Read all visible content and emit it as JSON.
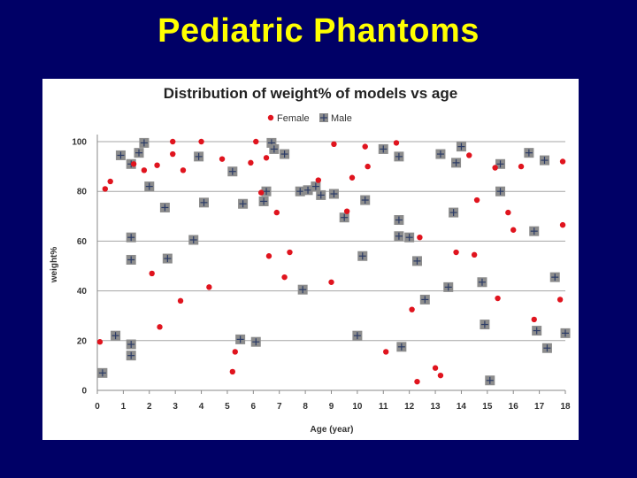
{
  "slide": {
    "title": "Pediatric Phantoms"
  },
  "chart_data": {
    "type": "scatter",
    "title": "Distribution of weight% of models vs age",
    "xlabel": "Age (year)",
    "ylabel": "weight%",
    "xlim": [
      0,
      18
    ],
    "ylim": [
      0,
      100
    ],
    "xticks": [
      0,
      1,
      2,
      3,
      4,
      5,
      6,
      7,
      8,
      9,
      10,
      11,
      12,
      13,
      14,
      15,
      16,
      17,
      18
    ],
    "yticks": [
      0,
      20,
      40,
      60,
      80,
      100
    ],
    "grid": true,
    "legend_position": "top-center",
    "series": [
      {
        "name": "Female",
        "color": "#e0141e",
        "marker": "circle",
        "points": [
          [
            0.1,
            19.5
          ],
          [
            0.3,
            81
          ],
          [
            0.5,
            84
          ],
          [
            1.4,
            91
          ],
          [
            1.8,
            88.5
          ],
          [
            2.1,
            47
          ],
          [
            2.3,
            90.5
          ],
          [
            2.4,
            25.5
          ],
          [
            2.9,
            100
          ],
          [
            2.9,
            95
          ],
          [
            3.2,
            36
          ],
          [
            3.3,
            88.5
          ],
          [
            4.0,
            100
          ],
          [
            4.3,
            41.5
          ],
          [
            4.8,
            93
          ],
          [
            5.2,
            7.5
          ],
          [
            5.3,
            15.5
          ],
          [
            5.9,
            91.5
          ],
          [
            6.1,
            100
          ],
          [
            6.3,
            79.5
          ],
          [
            6.5,
            93.5
          ],
          [
            6.6,
            54
          ],
          [
            6.9,
            71.5
          ],
          [
            7.2,
            45.5
          ],
          [
            7.4,
            55.5
          ],
          [
            8.5,
            84.5
          ],
          [
            9.0,
            43.5
          ],
          [
            9.1,
            99
          ],
          [
            9.6,
            72
          ],
          [
            9.8,
            85.5
          ],
          [
            10.3,
            98
          ],
          [
            10.4,
            90
          ],
          [
            11.1,
            15.5
          ],
          [
            11.5,
            99.5
          ],
          [
            12.1,
            32.5
          ],
          [
            12.3,
            3.5
          ],
          [
            12.4,
            61.5
          ],
          [
            13.0,
            9
          ],
          [
            13.2,
            6
          ],
          [
            13.8,
            55.5
          ],
          [
            14.3,
            94.5
          ],
          [
            14.5,
            54.5
          ],
          [
            14.6,
            76.5
          ],
          [
            15.4,
            37
          ],
          [
            15.3,
            89.5
          ],
          [
            15.8,
            71.5
          ],
          [
            16.0,
            64.5
          ],
          [
            16.3,
            90
          ],
          [
            16.8,
            28.5
          ],
          [
            17.8,
            36.5
          ],
          [
            17.9,
            66.5
          ],
          [
            17.9,
            92
          ]
        ]
      },
      {
        "name": "Male",
        "color": "#8c8c8c",
        "marker": "square",
        "points": [
          [
            0.2,
            7
          ],
          [
            0.7,
            22
          ],
          [
            0.9,
            94.5
          ],
          [
            1.3,
            91
          ],
          [
            1.3,
            61.5
          ],
          [
            1.3,
            52.5
          ],
          [
            1.3,
            18.5
          ],
          [
            1.3,
            14
          ],
          [
            1.6,
            95.5
          ],
          [
            1.8,
            99.5
          ],
          [
            2.0,
            82
          ],
          [
            2.6,
            73.5
          ],
          [
            2.7,
            53
          ],
          [
            3.7,
            60.5
          ],
          [
            3.9,
            94
          ],
          [
            4.1,
            75.5
          ],
          [
            5.2,
            88
          ],
          [
            5.5,
            20.5
          ],
          [
            5.6,
            75
          ],
          [
            6.1,
            19.5
          ],
          [
            6.4,
            76
          ],
          [
            6.5,
            80
          ],
          [
            6.7,
            99.5
          ],
          [
            6.8,
            97
          ],
          [
            7.2,
            95
          ],
          [
            7.8,
            80
          ],
          [
            7.9,
            40.5
          ],
          [
            8.1,
            80.5
          ],
          [
            8.4,
            82
          ],
          [
            8.6,
            78.5
          ],
          [
            9.1,
            79
          ],
          [
            9.5,
            69.5
          ],
          [
            10.0,
            22
          ],
          [
            10.2,
            54
          ],
          [
            10.3,
            76.5
          ],
          [
            11.0,
            97
          ],
          [
            11.6,
            94
          ],
          [
            11.6,
            68.5
          ],
          [
            11.6,
            62
          ],
          [
            11.7,
            17.5
          ],
          [
            12.0,
            61.5
          ],
          [
            12.3,
            52
          ],
          [
            12.6,
            36.5
          ],
          [
            13.2,
            95
          ],
          [
            13.5,
            41.5
          ],
          [
            13.7,
            71.5
          ],
          [
            13.8,
            91.5
          ],
          [
            14.0,
            98
          ],
          [
            14.8,
            43.5
          ],
          [
            14.9,
            26.5
          ],
          [
            15.1,
            4
          ],
          [
            15.5,
            91
          ],
          [
            15.5,
            80
          ],
          [
            16.6,
            95.5
          ],
          [
            16.8,
            64
          ],
          [
            16.9,
            24
          ],
          [
            17.2,
            92.5
          ],
          [
            17.3,
            17
          ],
          [
            17.6,
            45.5
          ],
          [
            18.0,
            23
          ]
        ]
      }
    ]
  }
}
